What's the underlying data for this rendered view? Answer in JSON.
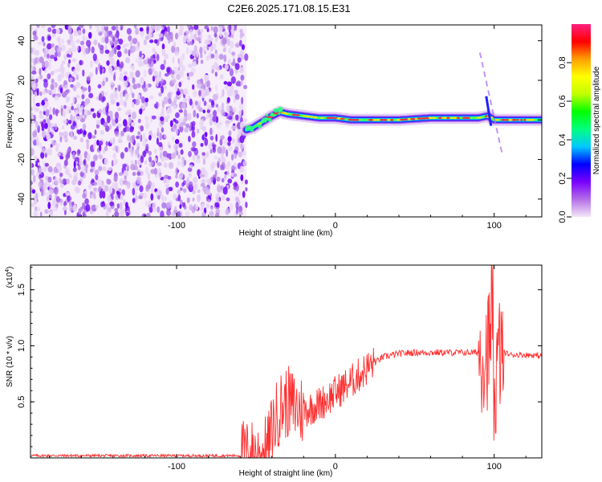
{
  "title": "C2E6.2025.171.08.15.E31",
  "chart_data": [
    {
      "type": "heatmap",
      "name": "spectrogram",
      "xlabel": "Height of straight line (km)",
      "ylabel": "Frequency (Hz)",
      "xlim": [
        -192,
        130
      ],
      "ylim": [
        -49,
        48
      ],
      "xticks": [
        -100,
        0,
        100
      ],
      "yticks": [
        -40,
        -20,
        0,
        20,
        40
      ],
      "noise_region_x": [
        -192,
        -56
      ],
      "signal_track": {
        "x": [
          -56,
          -52,
          -46,
          -40,
          -35,
          -30,
          -20,
          -10,
          0,
          10,
          20,
          40,
          60,
          80,
          90,
          96,
          100,
          105,
          130
        ],
        "frequency": [
          -5,
          -4,
          -1,
          2,
          4,
          3,
          2,
          1,
          1,
          0,
          0,
          0,
          1,
          1,
          1,
          2,
          0,
          0,
          0
        ]
      },
      "colorbar": {
        "label": "Normalized spectral amplitude",
        "range": [
          0,
          1
        ],
        "ticks": [
          0.0,
          0.2,
          0.4,
          0.6,
          0.8
        ],
        "colors": [
          "#f4e6f8",
          "#b46ee6",
          "#7a00ff",
          "#0000ff",
          "#00c8ff",
          "#00ff80",
          "#00ff00",
          "#c0ff00",
          "#ffff00",
          "#ffa000",
          "#ff0000",
          "#ff2080"
        ]
      }
    },
    {
      "type": "line",
      "name": "snr",
      "xlabel": "Height of straight line (km)",
      "ylabel": "SNR (10 * v/v)",
      "multiplier_label": "(x10",
      "multiplier_exp": "4",
      "multiplier_close": ")",
      "xlim": [
        -192,
        130
      ],
      "ylim": [
        0,
        1.72
      ],
      "xticks": [
        -100,
        0,
        100
      ],
      "yticks": [
        0.5,
        1.0,
        1.5
      ],
      "ytick_labels": [
        "0.5",
        "1.0",
        "1.5"
      ],
      "color": "#ff3030",
      "series_envelope": {
        "x": [
          -192,
          -60,
          -45,
          -42,
          -40,
          -35,
          -30,
          -25,
          -20,
          -10,
          0,
          10,
          20,
          30,
          40,
          50,
          60,
          70,
          80,
          90,
          95,
          97,
          100,
          103,
          105,
          110,
          120,
          130
        ],
        "y": [
          0.02,
          0.02,
          0.03,
          0.1,
          0.25,
          0.45,
          0.5,
          0.45,
          0.42,
          0.48,
          0.58,
          0.68,
          0.8,
          0.9,
          0.93,
          0.94,
          0.94,
          0.94,
          0.94,
          0.94,
          0.95,
          1.0,
          0.55,
          0.92,
          0.95,
          0.92,
          0.92,
          0.91
        ]
      }
    }
  ]
}
